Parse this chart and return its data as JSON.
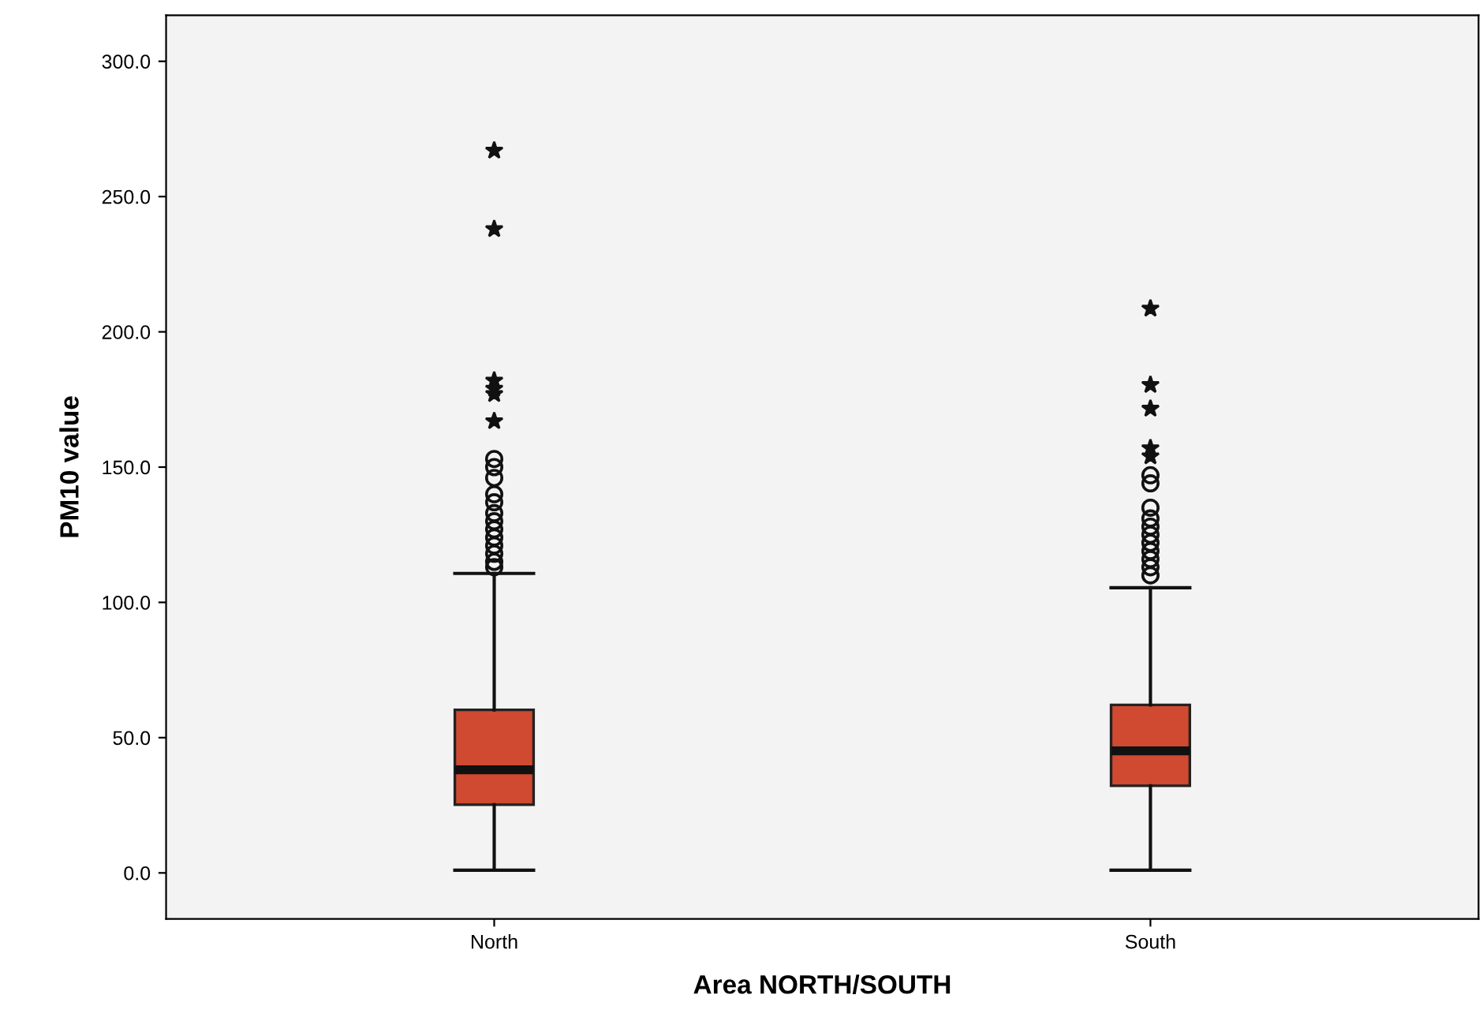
{
  "chart_data": {
    "type": "box",
    "xlabel": "Area NORTH/SOUTH",
    "ylabel": "PM10 value",
    "categories": [
      "North",
      "South"
    ],
    "series": [
      {
        "color": "#cf4a30",
        "boxes": [
          {
            "low": 1,
            "q1": 25.2,
            "median": 38.1,
            "q3": 60.3,
            "high": 110.7,
            "outliers": [
              267,
              238,
              182,
              179,
              177,
              167,
              153,
              150,
              146,
              140,
              137,
              133,
              130,
              127,
              124,
              121,
              118,
              115,
              113
            ]
          },
          {
            "low": 1,
            "q1": 32.2,
            "median": 45.1,
            "q3": 62.1,
            "high": 105.4,
            "outliers": [
              208.6,
              180.4,
              171.6,
              157,
              154,
              147,
              144,
              135,
              131,
              128,
              125,
              122,
              119,
              116,
              113,
              110
            ]
          }
        ]
      }
    ],
    "ylim": [
      -17,
      317
    ],
    "yticks": [
      {
        "value": 0,
        "label": "0.0"
      },
      {
        "value": 50,
        "label": "50.0"
      },
      {
        "value": 100,
        "label": "100.0"
      },
      {
        "value": 150,
        "label": "150.0"
      },
      {
        "value": 200,
        "label": "200.0"
      },
      {
        "value": 250,
        "label": "250.0"
      },
      {
        "value": 300,
        "label": "300.0"
      }
    ],
    "grid": false,
    "legend": false
  }
}
